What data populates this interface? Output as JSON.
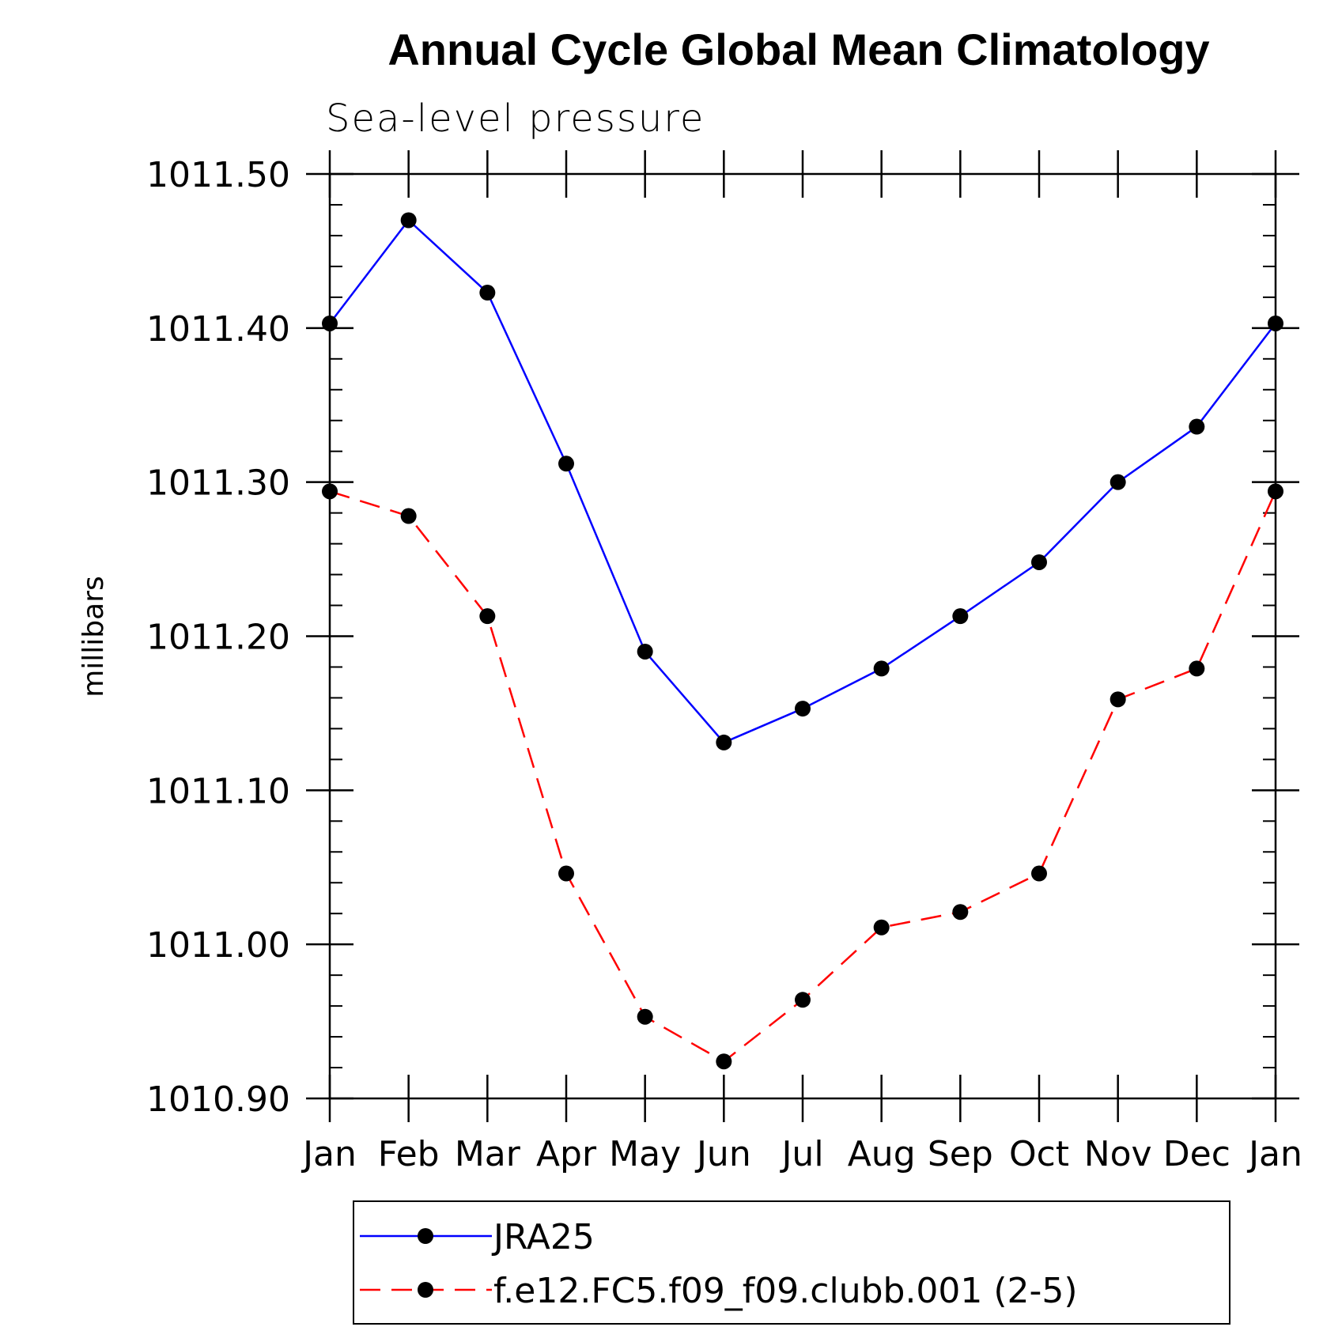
{
  "chart_data": {
    "type": "line",
    "title": "Annual Cycle Global Mean Climatology",
    "subtitle": "Sea-level pressure",
    "ylabel": "millibars",
    "xlabel": "",
    "categories": [
      "Jan",
      "Feb",
      "Mar",
      "Apr",
      "May",
      "Jun",
      "Jul",
      "Aug",
      "Sep",
      "Oct",
      "Nov",
      "Dec",
      "Jan"
    ],
    "ylim": [
      1010.9,
      1011.5
    ],
    "yticks": [
      1010.9,
      1011.0,
      1011.1,
      1011.2,
      1011.3,
      1011.4,
      1011.5
    ],
    "ytick_labels": [
      "1010.90",
      "1011.00",
      "1011.10",
      "1011.20",
      "1011.30",
      "1011.40",
      "1011.50"
    ],
    "series": [
      {
        "name": "JRA25",
        "color": "#0000ff",
        "dash": "solid",
        "values": [
          1011.403,
          1011.47,
          1011.423,
          1011.312,
          1011.19,
          1011.131,
          1011.153,
          1011.179,
          1011.213,
          1011.248,
          1011.3,
          1011.336,
          1011.403
        ]
      },
      {
        "name": "f.e12.FC5.f09_f09.clubb.001 (2-5)",
        "color": "#ff0000",
        "dash": "dashed",
        "values": [
          1011.294,
          1011.278,
          1011.213,
          1011.046,
          1010.953,
          1010.924,
          1010.964,
          1011.011,
          1011.021,
          1011.046,
          1011.159,
          1011.179,
          1011.294
        ]
      }
    ],
    "legend_position": "bottom"
  },
  "colors": {
    "marker": "#000000",
    "axis": "#000000"
  }
}
